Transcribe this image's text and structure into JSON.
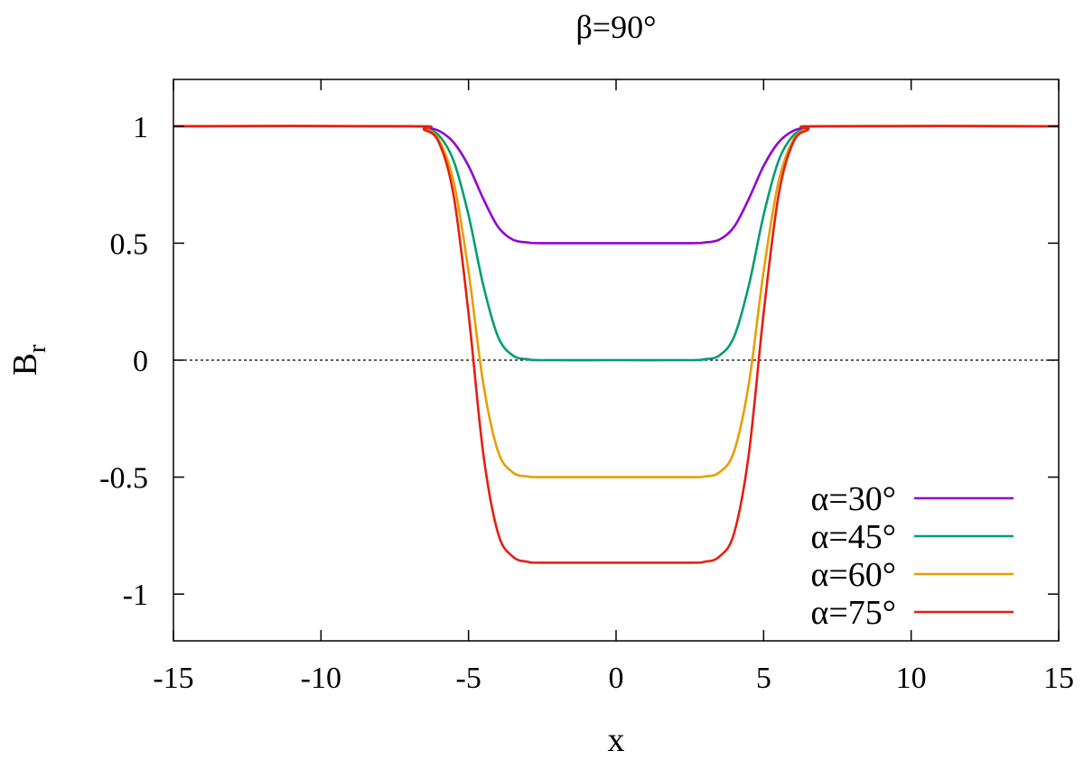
{
  "chart_data": {
    "type": "line",
    "title": "β=90°",
    "xlabel": "x",
    "ylabel_base": "B",
    "ylabel_sub": "r",
    "xlim": [
      -15,
      15
    ],
    "ylim": [
      -1.2,
      1.2
    ],
    "xticks": [
      -15,
      -10,
      -5,
      0,
      5,
      10,
      15
    ],
    "xtick_labels": [
      "-15",
      "-10",
      "-5",
      "0",
      "5",
      "10",
      "15"
    ],
    "yticks": [
      -1,
      -0.5,
      0,
      0.5,
      1
    ],
    "ytick_labels": [
      "-1",
      "-0.5",
      "0",
      "0.5",
      "1"
    ],
    "reference_line": {
      "y": 0,
      "style": "dotted",
      "color": "#000000"
    },
    "grid": false,
    "legend_position": "bottom-right",
    "series": [
      {
        "name": "α=30°",
        "color": "#9400d3",
        "x": [
          -15,
          -7,
          -6.5,
          -6,
          -5.5,
          -5,
          -4.5,
          -4,
          -3.5,
          -3,
          -2.5,
          0,
          2.5,
          3,
          3.5,
          4,
          4.5,
          5,
          5.5,
          6,
          6.5,
          7,
          15
        ],
        "y": [
          1,
          1,
          0.995,
          0.98,
          0.93,
          0.83,
          0.69,
          0.57,
          0.515,
          0.503,
          0.5,
          0.5,
          0.5,
          0.503,
          0.515,
          0.57,
          0.69,
          0.83,
          0.93,
          0.98,
          0.995,
          1,
          1
        ]
      },
      {
        "name": "α=45°",
        "color": "#009e73",
        "x": [
          -15,
          -7,
          -6.5,
          -6,
          -5.5,
          -5,
          -4.5,
          -4,
          -3.5,
          -3,
          -2.5,
          0,
          2.5,
          3,
          3.5,
          4,
          4.5,
          5,
          5.5,
          6,
          6.5,
          7,
          15
        ],
        "y": [
          1,
          1,
          0.99,
          0.96,
          0.85,
          0.62,
          0.32,
          0.1,
          0.02,
          0.004,
          0,
          0,
          0,
          0.004,
          0.02,
          0.1,
          0.32,
          0.62,
          0.85,
          0.96,
          0.99,
          1,
          1
        ]
      },
      {
        "name": "α=60°",
        "color": "#e69f00",
        "x": [
          -15,
          -7,
          -6.5,
          -6,
          -5.5,
          -5,
          -4.5,
          -4,
          -3.5,
          -3,
          -2.5,
          0,
          2.5,
          3,
          3.5,
          4,
          4.5,
          5,
          5.5,
          6,
          6.5,
          7,
          15
        ],
        "y": [
          1,
          1,
          0.99,
          0.94,
          0.76,
          0.38,
          -0.1,
          -0.39,
          -0.48,
          -0.497,
          -0.5,
          -0.5,
          -0.5,
          -0.497,
          -0.48,
          -0.39,
          -0.1,
          0.38,
          0.76,
          0.94,
          0.99,
          1,
          1
        ]
      },
      {
        "name": "α=75°",
        "color": "#e51e10",
        "x": [
          -15,
          -7,
          -6.5,
          -6,
          -5.5,
          -5,
          -4.5,
          -4,
          -3.5,
          -3,
          -2.5,
          0,
          2.5,
          3,
          3.5,
          4,
          4.5,
          5,
          5.5,
          6,
          6.5,
          7,
          15
        ],
        "y": [
          1,
          1,
          0.985,
          0.93,
          0.7,
          0.2,
          -0.4,
          -0.74,
          -0.84,
          -0.862,
          -0.866,
          -0.866,
          -0.866,
          -0.862,
          -0.84,
          -0.74,
          -0.4,
          0.2,
          0.7,
          0.93,
          0.985,
          1,
          1
        ]
      }
    ]
  }
}
